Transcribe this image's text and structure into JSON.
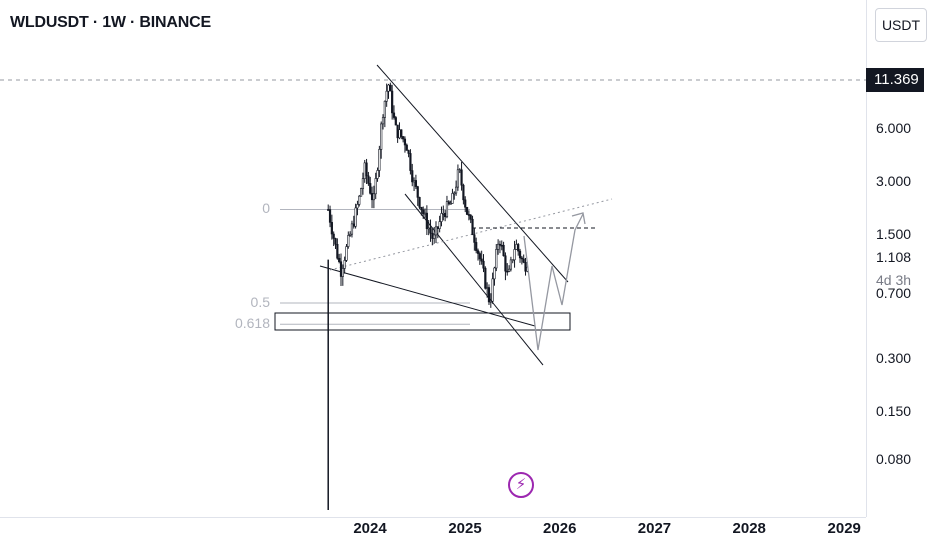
{
  "header": {
    "title": "WLDUSDT · 1W · BINANCE"
  },
  "price_axis": {
    "currency_label": "USDT",
    "last_price": "11.369",
    "current_price": "1.108",
    "countdown": "4d 3h"
  },
  "colors": {
    "candle": "#131722",
    "drawing_line": "#131722",
    "projection": "#9598a1",
    "fib_text": "#b2b5be",
    "accent": "#9c27b0"
  },
  "icons": {
    "logo": "lightning-bolt-icon"
  },
  "chart_data": {
    "type": "candlestick",
    "symbol": "WLDUSDT",
    "timeframe": "1W",
    "exchange": "BINANCE",
    "y_scale": "log",
    "y_ticks": [
      "6.000",
      "3.000",
      "1.500",
      "0.700",
      "0.300",
      "0.150",
      "0.080"
    ],
    "x_ticks": [
      "2024",
      "2025",
      "2026",
      "2027",
      "2028",
      "2029"
    ],
    "fib_levels": [
      {
        "label": "0",
        "price": 2.1
      },
      {
        "label": "0.5",
        "price": 0.62
      },
      {
        "label": "0.618",
        "price": 0.47
      }
    ],
    "price_path": [
      {
        "date": "2023-07-24",
        "price": 2.1
      },
      {
        "date": "2023-08-21",
        "price": 1.3
      },
      {
        "date": "2023-09-11",
        "price": 0.95
      },
      {
        "date": "2023-10-16",
        "price": 1.5
      },
      {
        "date": "2023-11-20",
        "price": 2.4
      },
      {
        "date": "2023-12-11",
        "price": 3.6
      },
      {
        "date": "2024-01-15",
        "price": 2.3
      },
      {
        "date": "2024-02-19",
        "price": 7.5
      },
      {
        "date": "2024-03-11",
        "price": 11.0
      },
      {
        "date": "2024-04-08",
        "price": 6.0
      },
      {
        "date": "2024-05-20",
        "price": 5.0
      },
      {
        "date": "2024-06-17",
        "price": 3.0
      },
      {
        "date": "2024-07-29",
        "price": 1.9
      },
      {
        "date": "2024-09-02",
        "price": 1.4
      },
      {
        "date": "2024-10-07",
        "price": 2.0
      },
      {
        "date": "2024-11-11",
        "price": 2.3
      },
      {
        "date": "2024-12-09",
        "price": 3.5
      },
      {
        "date": "2025-01-06",
        "price": 2.1
      },
      {
        "date": "2025-02-10",
        "price": 1.4
      },
      {
        "date": "2025-03-10",
        "price": 0.95
      },
      {
        "date": "2025-04-07",
        "price": 0.62
      },
      {
        "date": "2025-05-12",
        "price": 1.5
      },
      {
        "date": "2025-06-16",
        "price": 0.85
      },
      {
        "date": "2025-07-14",
        "price": 1.35
      },
      {
        "date": "2025-08-18",
        "price": 1.0
      },
      {
        "date": "2025-09-01",
        "price": 1.108
      }
    ]
  }
}
